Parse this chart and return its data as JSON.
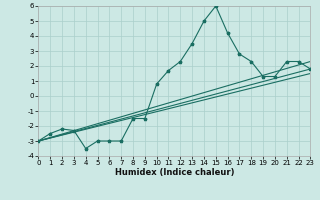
{
  "title": "",
  "xlabel": "Humidex (Indice chaleur)",
  "xlim": [
    0,
    23
  ],
  "ylim": [
    -4,
    6
  ],
  "xticks": [
    0,
    1,
    2,
    3,
    4,
    5,
    6,
    7,
    8,
    9,
    10,
    11,
    12,
    13,
    14,
    15,
    16,
    17,
    18,
    19,
    20,
    21,
    22,
    23
  ],
  "yticks": [
    -4,
    -3,
    -2,
    -1,
    0,
    1,
    2,
    3,
    4,
    5,
    6
  ],
  "background_color": "#cce8e4",
  "grid_color": "#aacfcb",
  "line_color": "#1a6e62",
  "line1_x": [
    0,
    1,
    2,
    3,
    4,
    5,
    6,
    7,
    8,
    9,
    10,
    11,
    12,
    13,
    14,
    15,
    16,
    17,
    18,
    19,
    20,
    21,
    22,
    23
  ],
  "line1_y": [
    -3.0,
    -2.5,
    -2.2,
    -2.3,
    -3.5,
    -3.0,
    -3.0,
    -3.0,
    -1.5,
    -1.5,
    0.8,
    1.7,
    2.3,
    3.5,
    5.0,
    6.0,
    4.2,
    2.8,
    2.3,
    1.3,
    1.3,
    2.3,
    2.3,
    1.8
  ],
  "line2_x": [
    0,
    23
  ],
  "line2_y": [
    -3.0,
    1.5
  ],
  "line3_x": [
    0,
    23
  ],
  "line3_y": [
    -3.0,
    1.8
  ],
  "line4_x": [
    0,
    23
  ],
  "line4_y": [
    -3.0,
    2.3
  ],
  "figsize": [
    3.2,
    2.0
  ],
  "dpi": 100,
  "tick_labelsize": 5,
  "xlabel_fontsize": 6,
  "linewidth": 0.8,
  "markersize": 2.5
}
